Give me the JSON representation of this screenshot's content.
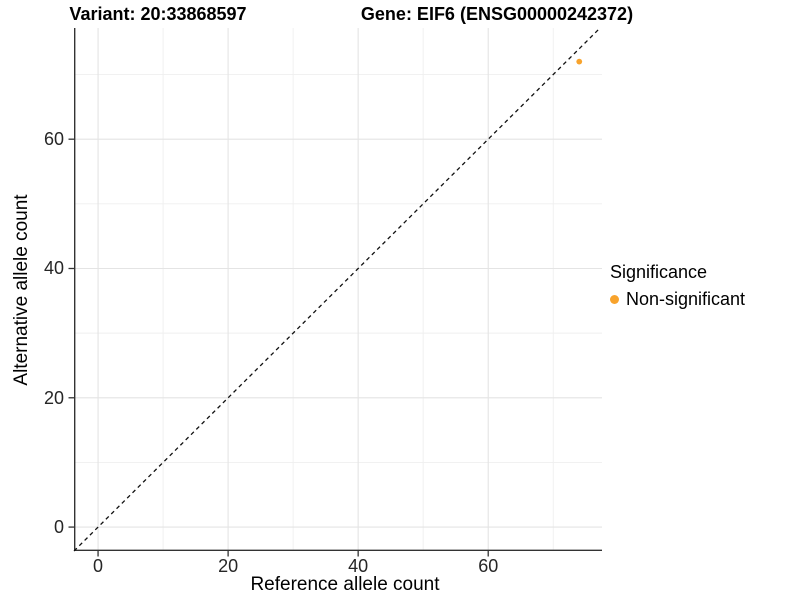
{
  "chart_data": {
    "type": "scatter",
    "title_variant": "Variant: 20:33868597",
    "title_gene": "Gene: EIF6 (ENSG00000242372)",
    "xlabel": "Reference allele count",
    "ylabel": "Alternative allele count",
    "xlim": [
      -3.7,
      77.5
    ],
    "ylim": [
      -3.7,
      77.2
    ],
    "x_ticks": [
      0,
      20,
      40,
      60
    ],
    "y_ticks": [
      0,
      20,
      40,
      60
    ],
    "x_minor": [
      10,
      30,
      50,
      70
    ],
    "y_minor": [
      10,
      30,
      50,
      70
    ],
    "grid": "on",
    "identity_line": {
      "slope": 1,
      "intercept": 0,
      "style": "dashed",
      "color": "#111111"
    },
    "series": [
      {
        "name": "Non-significant",
        "color": "#F8A32C",
        "points": [
          {
            "x": 74,
            "y": 72
          }
        ]
      }
    ],
    "legend": {
      "title": "Significance",
      "position": "right",
      "entries": [
        {
          "label": "Non-significant",
          "color": "#F8A32C"
        }
      ]
    },
    "colors": {
      "grid_major": "#E4E4E4",
      "grid_minor": "#EFEFEF",
      "axis_line": "#333333",
      "tick_text": "#262626"
    }
  }
}
